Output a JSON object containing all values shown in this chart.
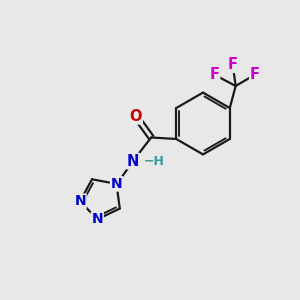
{
  "bg_color": "#e8e8e8",
  "bond_color": "#1a1a1a",
  "N_color": "#0000cc",
  "O_color": "#cc0000",
  "F_color": "#cc00cc",
  "H_color": "#3a9a9a",
  "figsize": [
    3.0,
    3.0
  ],
  "dpi": 100,
  "xlim": [
    0,
    10
  ],
  "ylim": [
    0,
    10
  ]
}
